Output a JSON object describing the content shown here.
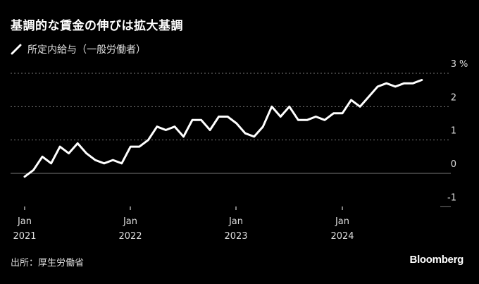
{
  "title": "基調的な賃金の伸びは拡大基調",
  "source": "出所：厚生労働省",
  "brand": "Bloomberg",
  "colors": {
    "background": "#000000",
    "line": "#ffffff",
    "grid": "#777777",
    "text": "#dddddd"
  },
  "chart_data": {
    "type": "line",
    "title": "基調的な賃金の伸びは拡大基調",
    "ylabel": "%",
    "ylim": [
      -1,
      3
    ],
    "yticks": [
      "3",
      "2",
      "1",
      "0",
      "-1"
    ],
    "xticks": [
      {
        "month": "Jan",
        "year": "2021"
      },
      {
        "month": "Jan",
        "year": "2022"
      },
      {
        "month": "Jan",
        "year": "2023"
      },
      {
        "month": "Jan",
        "year": "2024"
      }
    ],
    "grid": true,
    "legend": "top-left",
    "series": [
      {
        "name": "所定内給与（一般労働者）",
        "x": [
          "2021-01",
          "2021-02",
          "2021-03",
          "2021-04",
          "2021-05",
          "2021-06",
          "2021-07",
          "2021-08",
          "2021-09",
          "2021-10",
          "2021-11",
          "2021-12",
          "2022-01",
          "2022-02",
          "2022-03",
          "2022-04",
          "2022-05",
          "2022-06",
          "2022-07",
          "2022-08",
          "2022-09",
          "2022-10",
          "2022-11",
          "2022-12",
          "2023-01",
          "2023-02",
          "2023-03",
          "2023-04",
          "2023-05",
          "2023-06",
          "2023-07",
          "2023-08",
          "2023-09",
          "2023-10",
          "2023-11",
          "2023-12",
          "2024-01",
          "2024-02",
          "2024-03",
          "2024-04",
          "2024-05",
          "2024-06",
          "2024-07",
          "2024-08",
          "2024-09",
          "2024-10"
        ],
        "values": [
          -0.1,
          0.1,
          0.5,
          0.3,
          0.8,
          0.6,
          0.9,
          0.6,
          0.4,
          0.3,
          0.4,
          0.3,
          0.8,
          0.8,
          1.0,
          1.4,
          1.3,
          1.4,
          1.1,
          1.6,
          1.6,
          1.3,
          1.7,
          1.7,
          1.5,
          1.2,
          1.1,
          1.4,
          2.0,
          1.7,
          2.0,
          1.6,
          1.6,
          1.7,
          1.6,
          1.8,
          1.8,
          2.2,
          2.0,
          2.3,
          2.6,
          2.7,
          2.6,
          2.7,
          2.7,
          2.8
        ]
      }
    ]
  }
}
